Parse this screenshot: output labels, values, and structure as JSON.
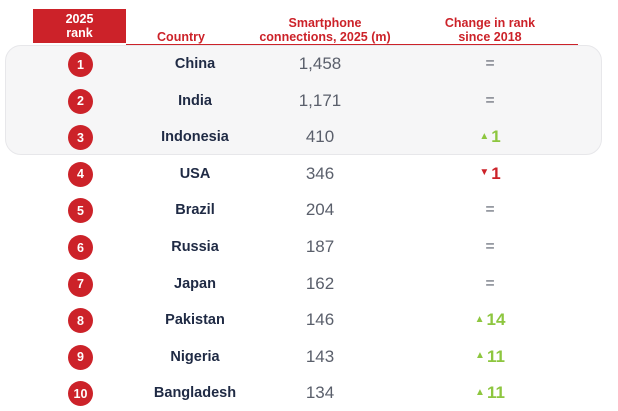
{
  "header": {
    "rank": "2025\nrank",
    "country": "Country",
    "connections": "Smartphone\nconnections, 2025 (m)",
    "change": "Change in rank\nsince 2018"
  },
  "colors": {
    "accent": "#cc2229",
    "up": "#8dc63f",
    "down": "#cc2229",
    "country_text": "#1f2a44",
    "value_text": "#5a5f6b"
  },
  "rows": [
    {
      "rank": "1",
      "country": "China",
      "connections": "1,458",
      "change": {
        "dir": "same",
        "icon": "",
        "text": "="
      }
    },
    {
      "rank": "2",
      "country": "India",
      "connections": "1,171",
      "change": {
        "dir": "same",
        "icon": "",
        "text": "="
      }
    },
    {
      "rank": "3",
      "country": "Indonesia",
      "connections": "410",
      "change": {
        "dir": "up",
        "icon": "▲",
        "text": "1"
      }
    },
    {
      "rank": "4",
      "country": "USA",
      "connections": "346",
      "change": {
        "dir": "down",
        "icon": "▼",
        "text": "1"
      }
    },
    {
      "rank": "5",
      "country": "Brazil",
      "connections": "204",
      "change": {
        "dir": "same",
        "icon": "",
        "text": "="
      }
    },
    {
      "rank": "6",
      "country": "Russia",
      "connections": "187",
      "change": {
        "dir": "same",
        "icon": "",
        "text": "="
      }
    },
    {
      "rank": "7",
      "country": "Japan",
      "connections": "162",
      "change": {
        "dir": "same",
        "icon": "",
        "text": "="
      }
    },
    {
      "rank": "8",
      "country": "Pakistan",
      "connections": "146",
      "change": {
        "dir": "up",
        "icon": "▲",
        "text": "14"
      }
    },
    {
      "rank": "9",
      "country": "Nigeria",
      "connections": "143",
      "change": {
        "dir": "up",
        "icon": "▲",
        "text": "11"
      }
    },
    {
      "rank": "10",
      "country": "Bangladesh",
      "connections": "134",
      "change": {
        "dir": "up",
        "icon": "▲",
        "text": "11"
      }
    }
  ]
}
